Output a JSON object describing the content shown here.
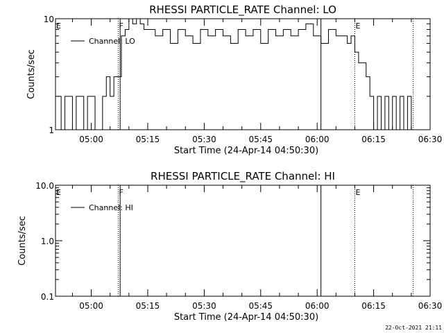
{
  "footer_timestamp": "22-Oct-2021 21:11",
  "chart_data": [
    {
      "type": "line",
      "title": "RHESSI PARTICLE_RATE Channel: LO",
      "xlabel": "Start Time (24-Apr-14 04:50:30)",
      "ylabel": "Counts/sec",
      "yscale": "log",
      "ylim": [
        1,
        10
      ],
      "y_tick_labels": [
        "1",
        "10"
      ],
      "xlim": [
        "04:50:30",
        "06:30:00"
      ],
      "x_tick_labels": [
        "05:00",
        "05:15",
        "05:30",
        "05:45",
        "06:00",
        "06:15",
        "06:30"
      ],
      "legend": {
        "position": "top-left",
        "entries": [
          "Channel: LO"
        ]
      },
      "markers": [
        {
          "time": "04:50:30",
          "label": "E",
          "style": "dotted"
        },
        {
          "time": "05:07:10",
          "label": "F",
          "style": "dotted"
        },
        {
          "time": "05:07:40",
          "label": "",
          "style": "solid"
        },
        {
          "time": "06:01:00",
          "label": "",
          "style": "solid"
        },
        {
          "time": "06:10:00",
          "label": "E",
          "style": "dotted"
        },
        {
          "time": "06:25:30",
          "label": "",
          "style": "dotted"
        }
      ],
      "series": [
        {
          "name": "Channel: LO",
          "x": [
            "04:51:00",
            "04:52:00",
            "04:53:00",
            "04:54:00",
            "04:55:00",
            "04:56:00",
            "04:57:00",
            "04:58:00",
            "04:59:00",
            "05:00:00",
            "05:01:00",
            "05:02:00",
            "05:03:00",
            "05:04:00",
            "05:05:00",
            "05:06:00",
            "05:07:00",
            "05:08:00",
            "05:09:00",
            "05:10:00",
            "05:11:00",
            "05:12:00",
            "05:13:00",
            "05:14:00",
            "05:15:00",
            "05:17:00",
            "05:19:00",
            "05:21:00",
            "05:23:00",
            "05:25:00",
            "05:27:00",
            "05:29:00",
            "05:31:00",
            "05:33:00",
            "05:35:00",
            "05:37:00",
            "05:39:00",
            "05:41:00",
            "05:43:00",
            "05:45:00",
            "05:47:00",
            "05:49:00",
            "05:51:00",
            "05:53:00",
            "05:55:00",
            "05:57:00",
            "05:59:00",
            "06:01:00",
            "06:03:00",
            "06:05:00",
            "06:07:00",
            "06:08:00",
            "06:09:00",
            "06:10:00",
            "06:11:00",
            "06:12:00",
            "06:13:00",
            "06:14:00",
            "06:15:00",
            "06:16:00",
            "06:17:00",
            "06:18:00",
            "06:19:00",
            "06:20:00",
            "06:21:00",
            "06:22:00",
            "06:23:00",
            "06:24:00",
            "06:25:00"
          ],
          "values": [
            2,
            1,
            2,
            2,
            1,
            2,
            2,
            1,
            2,
            2,
            1,
            1,
            2,
            3,
            2,
            3,
            3,
            7,
            8,
            10,
            9,
            10,
            9,
            8,
            8,
            7,
            8,
            6,
            8,
            7,
            6,
            8,
            7,
            8,
            7,
            6,
            8,
            7,
            8,
            6,
            8,
            7,
            8,
            7,
            8,
            9,
            7,
            6,
            8,
            7,
            7,
            6,
            7,
            5,
            4,
            4,
            3,
            2,
            1,
            2,
            1,
            2,
            1,
            2,
            1,
            2,
            1,
            2,
            1
          ]
        }
      ]
    },
    {
      "type": "line",
      "title": "RHESSI PARTICLE_RATE Channel: HI",
      "xlabel": "Start Time (24-Apr-14 04:50:30)",
      "ylabel": "Counts/sec",
      "yscale": "log",
      "ylim": [
        0.1,
        10
      ],
      "y_tick_labels": [
        "0.1",
        "1.0",
        "10.0"
      ],
      "xlim": [
        "04:50:30",
        "06:30:00"
      ],
      "x_tick_labels": [
        "05:00",
        "05:15",
        "05:30",
        "05:45",
        "06:00",
        "06:15",
        "06:30"
      ],
      "legend": {
        "position": "top-left",
        "entries": [
          "Channel: HI"
        ]
      },
      "markers": [
        {
          "time": "04:50:30",
          "label": "E",
          "style": "dotted"
        },
        {
          "time": "05:07:10",
          "label": "F",
          "style": "dotted"
        },
        {
          "time": "05:07:40",
          "label": "",
          "style": "solid"
        },
        {
          "time": "06:01:00",
          "label": "",
          "style": "solid"
        },
        {
          "time": "06:10:00",
          "label": "E",
          "style": "dotted"
        },
        {
          "time": "06:25:30",
          "label": "",
          "style": "dotted"
        }
      ],
      "series": [
        {
          "name": "Channel: HI",
          "x": [],
          "values": []
        }
      ]
    }
  ]
}
